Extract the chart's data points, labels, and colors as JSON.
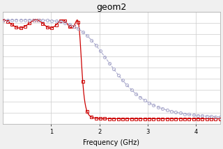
{
  "title": "geom2",
  "xlabel": "Frequency (GHz)",
  "xlim": [
    0,
    4.5
  ],
  "ylim": [
    -1.1,
    0.05
  ],
  "xticks": [
    1,
    2,
    3,
    4
  ],
  "background_color": "#f0f0f0",
  "grid_color": "#cccccc",
  "red_color": "#cc0000",
  "blue_color": "#aaaacc",
  "title_fontsize": 9,
  "label_fontsize": 7,
  "fc_red": 1.58,
  "n_red": 7,
  "eps_red": 0.3,
  "fc_blue": 2.3,
  "n_blue": 3,
  "num_freq": 300,
  "num_pts": 50
}
